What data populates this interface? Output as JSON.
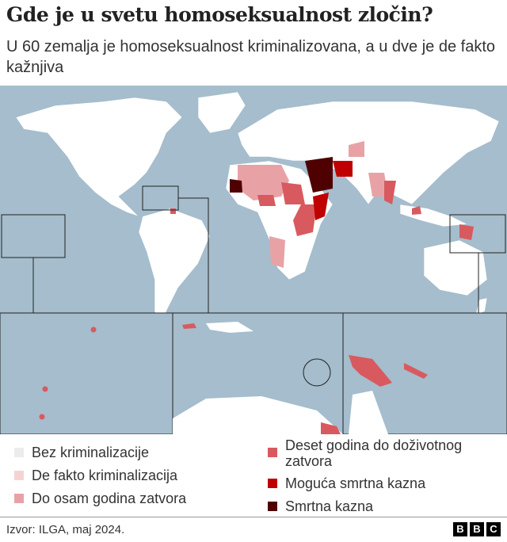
{
  "header": {
    "title": "Gde je u svetu homoseksualnost zločin?",
    "subtitle": "U 60 zemalja je homoseksualnost kriminalizovana, a u dve je de fakto kažnjiva"
  },
  "colors": {
    "ocean": "#a5bdcc",
    "land": "#ffffff",
    "none": "#ececec",
    "de_facto": "#f6d3d3",
    "up_to_8": "#e8a2a6",
    "ten_to_life": "#d85a5f",
    "possible_death": "#c00000",
    "death": "#4f0000"
  },
  "legend": [
    {
      "label": "Bez kriminalizacije",
      "color": "#ececec"
    },
    {
      "label": "De fakto kriminalizacija",
      "color": "#f6d3d3"
    },
    {
      "label": "Do osam godina zatvora",
      "color": "#e8a2a6"
    },
    {
      "label": "Deset godina do doživotnog zatvora",
      "color": "#d85a5f"
    },
    {
      "label": "Moguća smrtna kazna",
      "color": "#c00000"
    },
    {
      "label": "Smrtna kazna",
      "color": "#4f0000"
    }
  ],
  "footer": {
    "source": "Izvor: ILGA, maj 2024.",
    "logo": "BBC"
  }
}
